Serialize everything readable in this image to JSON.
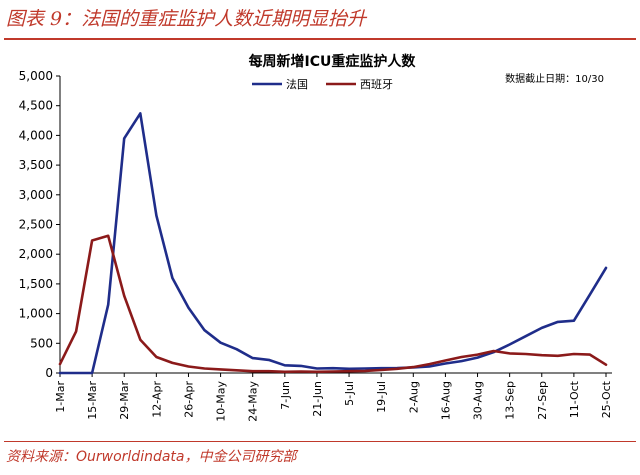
{
  "figure": {
    "title": "图表 9：法国的重症监护人数近期明显抬升",
    "source": "资料来源：Ourworldindata，中金公司研究部"
  },
  "chart_data": {
    "type": "line",
    "title": "每周新增ICU重症监护人数",
    "annotation": "数据截止日期：10/30",
    "xlabel": "",
    "ylabel": "",
    "ylim": [
      0,
      5000
    ],
    "yticks": [
      0,
      500,
      1000,
      1500,
      2000,
      2500,
      3000,
      3500,
      4000,
      4500,
      5000
    ],
    "ytick_labels": [
      "0",
      "500",
      "1,000",
      "1,500",
      "2,000",
      "2,500",
      "3,000",
      "3,500",
      "4,000",
      "4,500",
      "5,000"
    ],
    "x_tick_labels": [
      "1-Mar",
      "15-Mar",
      "29-Mar",
      "12-Apr",
      "26-Apr",
      "10-May",
      "24-May",
      "7-Jun",
      "21-Jun",
      "5-Jul",
      "19-Jul",
      "2-Aug",
      "16-Aug",
      "30-Aug",
      "13-Sep",
      "27-Sep",
      "11-Oct",
      "25-Oct"
    ],
    "grid": false,
    "legend_position": "top-center",
    "series": [
      {
        "name": "法国",
        "color": "#1f2d8a",
        "points": [
          [
            "1-Mar",
            0
          ],
          [
            "8-Mar",
            0
          ],
          [
            "15-Mar",
            0
          ],
          [
            "22-Mar",
            1150
          ],
          [
            "29-Mar",
            3950
          ],
          [
            "5-Apr",
            4370
          ],
          [
            "12-Apr",
            2650
          ],
          [
            "19-Apr",
            1600
          ],
          [
            "26-Apr",
            1100
          ],
          [
            "3-May",
            720
          ],
          [
            "10-May",
            510
          ],
          [
            "17-May",
            400
          ],
          [
            "24-May",
            250
          ],
          [
            "31-May",
            220
          ],
          [
            "7-Jun",
            130
          ],
          [
            "14-Jun",
            120
          ],
          [
            "21-Jun",
            75
          ],
          [
            "28-Jun",
            80
          ],
          [
            "5-Jul",
            70
          ],
          [
            "12-Jul",
            75
          ],
          [
            "19-Jul",
            80
          ],
          [
            "26-Jul",
            85
          ],
          [
            "2-Aug",
            95
          ],
          [
            "9-Aug",
            110
          ],
          [
            "16-Aug",
            160
          ],
          [
            "23-Aug",
            200
          ],
          [
            "30-Aug",
            260
          ],
          [
            "6-Sep",
            350
          ],
          [
            "13-Sep",
            480
          ],
          [
            "20-Sep",
            620
          ],
          [
            "27-Sep",
            760
          ],
          [
            "4-Oct",
            860
          ],
          [
            "11-Oct",
            880
          ],
          [
            "18-Oct",
            1320
          ],
          [
            "25-Oct",
            1770
          ]
        ]
      },
      {
        "name": "西班牙",
        "color": "#8b1a1a",
        "points": [
          [
            "1-Mar",
            150
          ],
          [
            "8-Mar",
            700
          ],
          [
            "15-Mar",
            2230
          ],
          [
            "22-Mar",
            2310
          ],
          [
            "29-Mar",
            1300
          ],
          [
            "5-Apr",
            560
          ],
          [
            "12-Apr",
            270
          ],
          [
            "19-Apr",
            170
          ],
          [
            "26-Apr",
            110
          ],
          [
            "3-May",
            75
          ],
          [
            "10-May",
            60
          ],
          [
            "17-May",
            45
          ],
          [
            "24-May",
            30
          ],
          [
            "31-May",
            30
          ],
          [
            "7-Jun",
            20
          ],
          [
            "14-Jun",
            25
          ],
          [
            "21-Jun",
            20
          ],
          [
            "28-Jun",
            25
          ],
          [
            "5-Jul",
            30
          ],
          [
            "12-Jul",
            35
          ],
          [
            "19-Jul",
            50
          ],
          [
            "26-Jul",
            70
          ],
          [
            "2-Aug",
            100
          ],
          [
            "9-Aug",
            150
          ],
          [
            "16-Aug",
            210
          ],
          [
            "23-Aug",
            270
          ],
          [
            "30-Aug",
            310
          ],
          [
            "6-Sep",
            370
          ],
          [
            "13-Sep",
            330
          ],
          [
            "20-Sep",
            320
          ],
          [
            "27-Sep",
            300
          ],
          [
            "4-Oct",
            290
          ],
          [
            "11-Oct",
            320
          ],
          [
            "18-Oct",
            310
          ],
          [
            "25-Oct",
            140
          ]
        ]
      }
    ]
  }
}
